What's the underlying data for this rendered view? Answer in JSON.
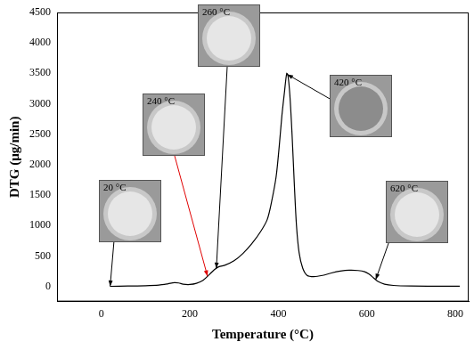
{
  "chart_data": {
    "type": "line",
    "x_label": "Temperature (°C)",
    "y_label": "DTG (μg/min)",
    "x": [
      20,
      60,
      100,
      130,
      150,
      165,
      175,
      185,
      200,
      215,
      230,
      245,
      255,
      265,
      280,
      300,
      320,
      340,
      360,
      375,
      385,
      395,
      402,
      408,
      414,
      419,
      422,
      426,
      431,
      436,
      441,
      447,
      455,
      465,
      480,
      500,
      520,
      540,
      560,
      580,
      595,
      605,
      615,
      625,
      640,
      660,
      700,
      750,
      810
    ],
    "values": [
      0,
      5,
      10,
      20,
      40,
      60,
      55,
      35,
      30,
      50,
      100,
      200,
      270,
      320,
      350,
      420,
      540,
      700,
      900,
      1100,
      1400,
      1800,
      2300,
      2800,
      3200,
      3500,
      3450,
      3150,
      2500,
      1700,
      1000,
      550,
      300,
      180,
      160,
      180,
      220,
      250,
      265,
      260,
      240,
      200,
      140,
      80,
      35,
      15,
      5,
      3,
      2
    ],
    "color": "#000000",
    "xlim": [
      -100,
      830
    ],
    "ylim": [
      -250,
      4500
    ],
    "xticks": [
      0,
      200,
      400,
      600,
      800
    ],
    "yticks": [
      0,
      500,
      1000,
      1500,
      2000,
      2500,
      3000,
      3500,
      4000,
      4500
    ],
    "grid": false,
    "annotations": [
      {
        "text": "20 °C",
        "x": 20
      },
      {
        "text": "240 °C",
        "x": 240
      },
      {
        "text": "260 °C",
        "x": 260
      },
      {
        "text": "420 °C",
        "x": 420
      },
      {
        "text": "620 °C",
        "x": 620
      }
    ]
  }
}
